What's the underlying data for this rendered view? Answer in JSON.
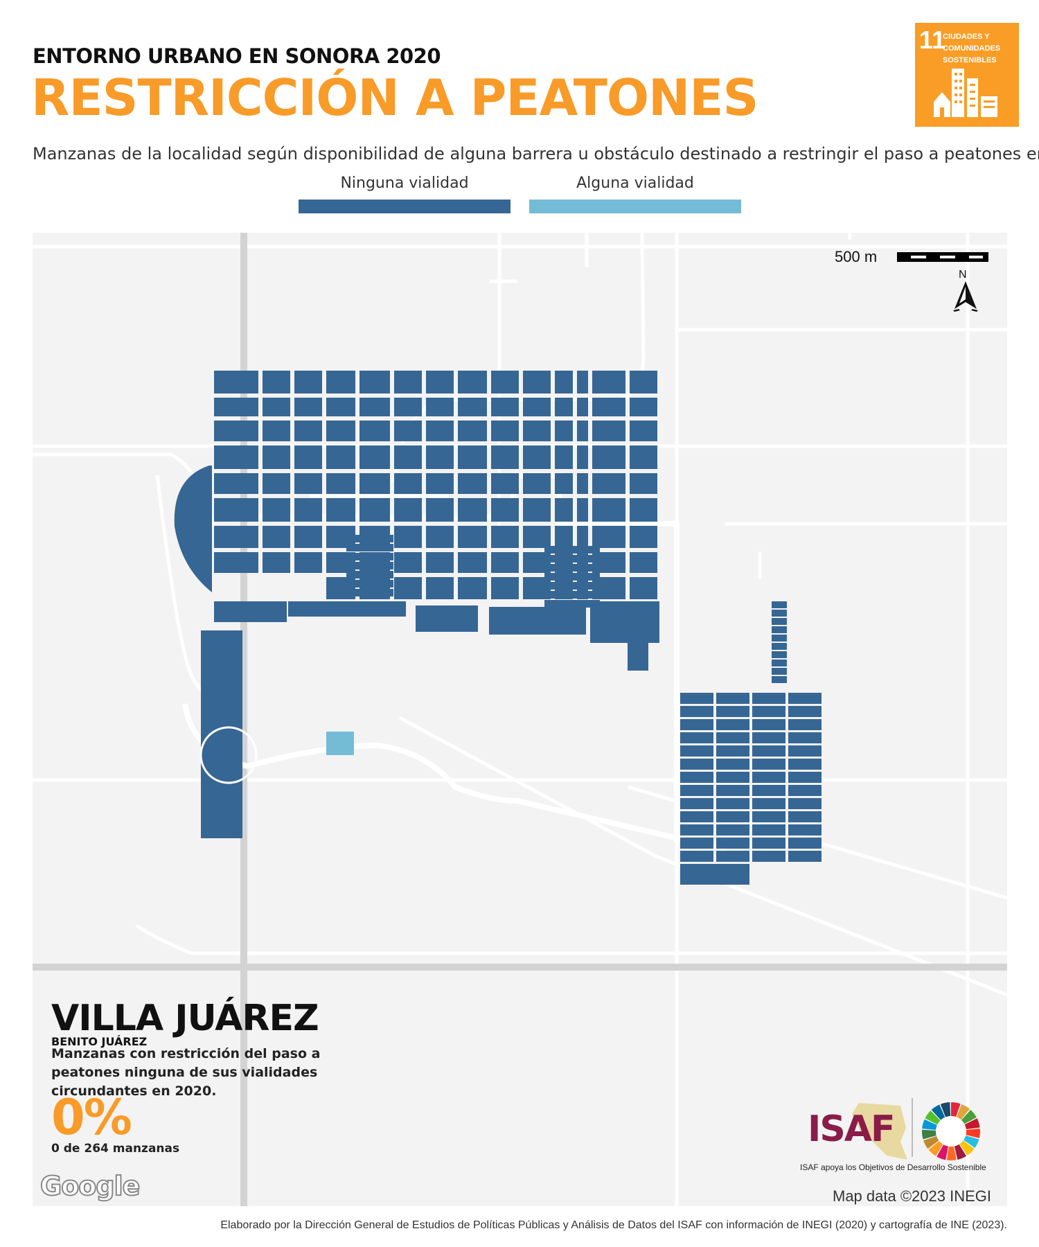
{
  "header": {
    "supertitle": "ENTORNO URBANO EN SONORA 2020",
    "title": "RESTRICCIÓN A PEATONES",
    "subtitle": "Manzanas de la localidad según disponibilidad de alguna barrera u obstáculo destinado a restringir el paso a peatones en sus vialidades"
  },
  "sdg_badge": {
    "number": "11",
    "label": "CIUDADES Y COMUNIDADES SOSTENIBLES",
    "color": "#f99d26",
    "icon": "city-buildings-icon"
  },
  "legend": {
    "items": [
      {
        "label": "Ninguna vialidad",
        "color": "#366694"
      },
      {
        "label": "Alguna vialidad",
        "color": "#74bcd6"
      }
    ]
  },
  "map": {
    "scale_label": "500 m",
    "north_label": "N",
    "background": "#f3f3f3",
    "road_color": "#ffffff",
    "highway_color": "#d4d4d4",
    "block_color": "#366694",
    "highlight_color": "#74bcd6",
    "attribution": "Map data ©2023 INEGI",
    "provider_logo": "Google"
  },
  "locality": {
    "name": "VILLA JUÁREZ",
    "municipality": "BENITO JUÁREZ",
    "description": "Manzanas con restricción del paso a peatones ninguna de sus vialidades circundantes en 2020.",
    "percentage": "0%",
    "count": "0 de 264 manzanas"
  },
  "branding": {
    "isaf_name": "ISAF",
    "isaf_tagline": "ISAF apoya los Objetivos de Desarrollo Sostenible",
    "isaf_color": "#8a1c4a"
  },
  "footer": {
    "note": "Elaborado por la Dirección General de Estudios de Políticas Públicas y Análisis de Datos del ISAF con información de INEGI (2020) y cartografía de INE (2023)."
  }
}
